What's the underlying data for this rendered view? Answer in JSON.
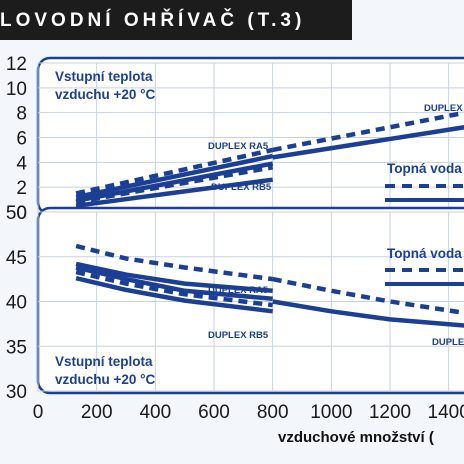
{
  "header": {
    "title": "LOVODNÍ OHŘÍVAČ (T.3)"
  },
  "chart_data": [
    {
      "type": "line",
      "annotation": "Vstupní teplota vzduchu +20 °C",
      "legend_title": "Topná voda",
      "xlim": [
        0,
        1500
      ],
      "ylim": [
        0,
        12
      ],
      "yticks": [
        0,
        2,
        4,
        6,
        8,
        10,
        12
      ],
      "grid": true,
      "series": [
        {
          "name": "DUPLEX RA5",
          "style": "dashed",
          "x": [
            130,
            800
          ],
          "y": [
            1.5,
            5.0
          ]
        },
        {
          "name": "DUPLEX RA5",
          "style": "solid",
          "x": [
            130,
            800
          ],
          "y": [
            1.2,
            4.5
          ]
        },
        {
          "name": "DUPLEX RA5",
          "style": "solid",
          "x": [
            130,
            800
          ],
          "y": [
            0.9,
            3.9
          ]
        },
        {
          "name": "DUPLEX RB5",
          "style": "dashed",
          "x": [
            130,
            800
          ],
          "y": [
            0.8,
            3.6
          ]
        },
        {
          "name": "DUPLEX RB5",
          "style": "solid",
          "x": [
            130,
            800
          ],
          "y": [
            0.5,
            2.6
          ]
        },
        {
          "name": "DUPLEX",
          "style": "dashed",
          "x": [
            800,
            1500
          ],
          "y": [
            5.0,
            8.2
          ]
        },
        {
          "name": "DUPLEX",
          "style": "solid",
          "x": [
            800,
            1500
          ],
          "y": [
            4.4,
            7.0
          ]
        }
      ]
    },
    {
      "type": "line",
      "annotation": "Vstupní teplota vzduchu +20 °C",
      "legend_title": "Topná voda",
      "xlabel": "vzduchové množství (",
      "xlim": [
        0,
        1500
      ],
      "ylim": [
        30,
        50
      ],
      "yticks": [
        30,
        35,
        40,
        45,
        50
      ],
      "xticks": [
        0,
        200,
        400,
        600,
        800,
        1000,
        1200,
        1400
      ],
      "grid": true,
      "series": [
        {
          "name": "DUPLEX RA5",
          "style": "dashed",
          "x": [
            130,
            300,
            500,
            800
          ],
          "y": [
            46.2,
            44.8,
            43.8,
            42.5
          ]
        },
        {
          "name": "DUPLEX RA5",
          "style": "solid",
          "x": [
            130,
            300,
            500,
            800
          ],
          "y": [
            44.2,
            43.0,
            42.0,
            41.2
          ]
        },
        {
          "name": "DUPLEX RA5",
          "style": "solid",
          "x": [
            130,
            300,
            500,
            800
          ],
          "y": [
            43.8,
            42.5,
            41.2,
            40.3
          ]
        },
        {
          "name": "DUPLEX RB5",
          "style": "dashed",
          "x": [
            130,
            300,
            500,
            800
          ],
          "y": [
            43.3,
            42.0,
            40.8,
            39.6
          ]
        },
        {
          "name": "DUPLEX RB5",
          "style": "solid",
          "x": [
            130,
            300,
            500,
            800
          ],
          "y": [
            42.6,
            41.3,
            40.1,
            38.9
          ]
        },
        {
          "name": "DUPLEX",
          "style": "dashed",
          "x": [
            800,
            1000,
            1200,
            1500
          ],
          "y": [
            42.5,
            41.2,
            40.0,
            38.5
          ]
        },
        {
          "name": "DUPLEX",
          "style": "solid",
          "x": [
            800,
            1000,
            1200,
            1500
          ],
          "y": [
            40.0,
            38.9,
            38.0,
            37.2
          ]
        }
      ]
    }
  ]
}
